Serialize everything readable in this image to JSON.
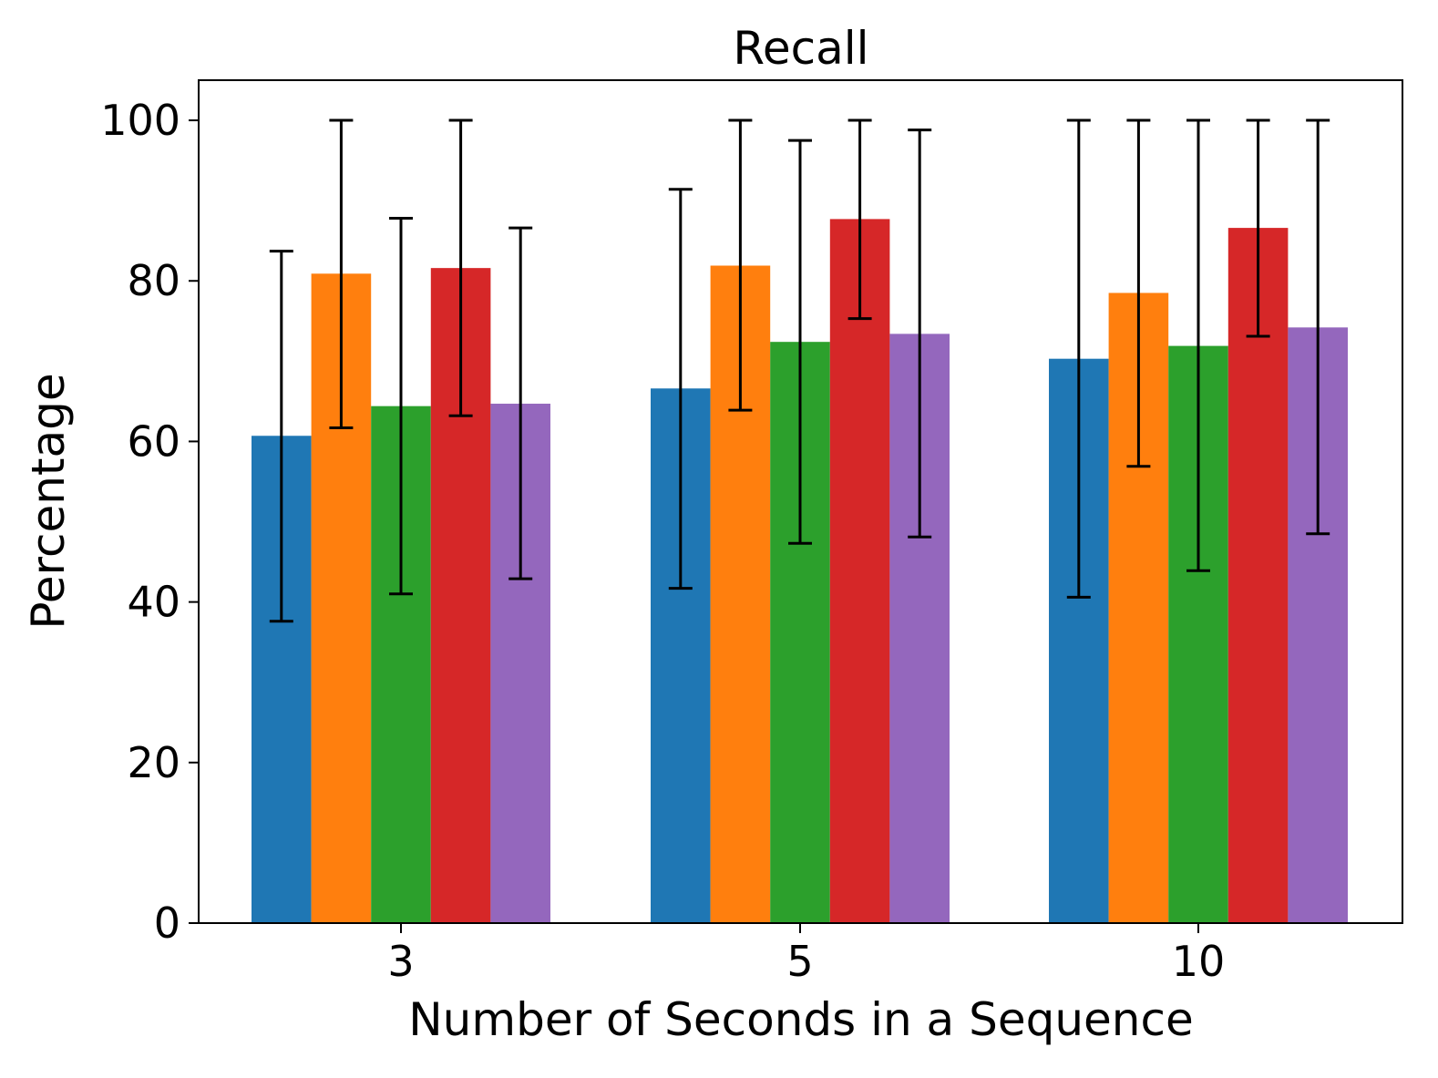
{
  "chart_data": {
    "type": "bar",
    "title": "Recall",
    "xlabel": "Number of Seconds in a Sequence",
    "ylabel": "Percentage",
    "ylim": [
      0,
      105
    ],
    "yticks": [
      0,
      20,
      40,
      60,
      80,
      100
    ],
    "categories": [
      "3",
      "5",
      "10"
    ],
    "grid": false,
    "legend": "none",
    "series": [
      {
        "color": "#1f77b4",
        "values": [
          60.7,
          66.6,
          70.3
        ],
        "err_low": [
          37.6,
          41.7,
          40.6
        ],
        "err_high": [
          83.7,
          91.4,
          100
        ]
      },
      {
        "color": "#ff7f0e",
        "values": [
          80.9,
          81.9,
          78.5
        ],
        "err_low": [
          61.7,
          63.9,
          56.9
        ],
        "err_high": [
          100,
          100,
          100
        ]
      },
      {
        "color": "#2ca02c",
        "values": [
          64.4,
          72.4,
          71.9
        ],
        "err_low": [
          41.0,
          47.3,
          43.9
        ],
        "err_high": [
          87.8,
          97.5,
          100
        ]
      },
      {
        "color": "#d62728",
        "values": [
          81.6,
          87.7,
          86.6
        ],
        "err_low": [
          63.2,
          75.3,
          73.1
        ],
        "err_high": [
          100,
          100,
          100
        ]
      },
      {
        "color": "#9467bd",
        "values": [
          64.7,
          73.4,
          74.2
        ],
        "err_low": [
          42.9,
          48.1,
          48.5
        ],
        "err_high": [
          86.6,
          98.8,
          100
        ]
      }
    ]
  }
}
